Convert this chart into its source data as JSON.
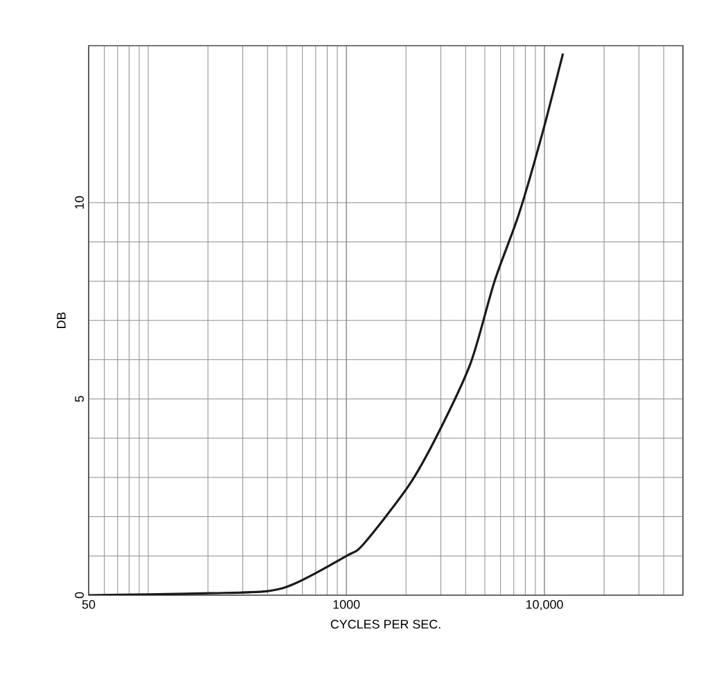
{
  "chart_data": {
    "type": "line",
    "xlabel": "CYCLES PER SEC.",
    "ylabel": "DB",
    "log": "x",
    "grid": true,
    "xlim": [
      50,
      50000
    ],
    "ylim": [
      0,
      14
    ],
    "xticks": [
      50,
      1000,
      {
        "value": 10000,
        "label": "10,000"
      }
    ],
    "yticks": [
      0,
      5,
      10
    ],
    "series": [
      {
        "color": "#1a1a1a",
        "x": [
          50,
          100,
          204,
          395,
          551,
          1000,
          1220,
          2070,
          2890,
          4230,
          5600,
          7420,
          9680,
          12400
        ],
        "values": [
          0,
          0.02,
          0.05,
          0.1,
          0.3,
          1.0,
          1.3,
          2.8,
          4.1,
          5.9,
          8.0,
          9.7,
          11.7,
          13.8
        ]
      }
    ]
  }
}
